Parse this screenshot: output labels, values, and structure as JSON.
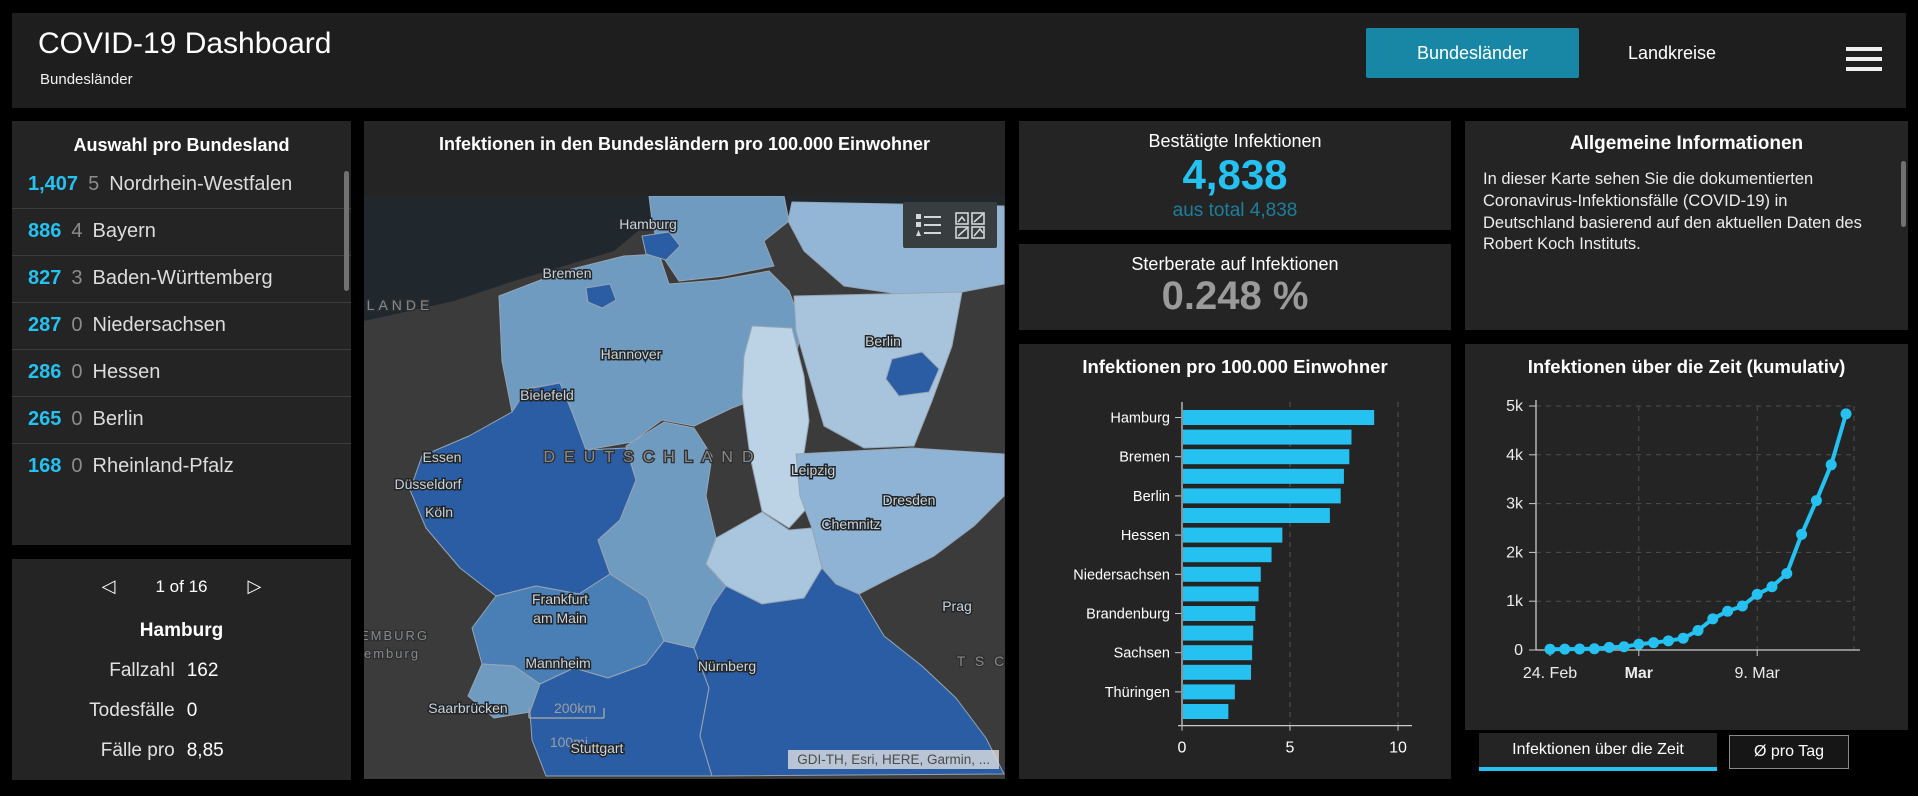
{
  "header": {
    "title": "COVID-19 Dashboard",
    "subtitle": "Bundesländer",
    "tabs": [
      {
        "label": "Bundesländer",
        "active": true
      },
      {
        "label": "Landkreise",
        "active": false
      }
    ]
  },
  "colors": {
    "accent": "#25c1f1",
    "accent_dim": "#1d7f9c",
    "active_tab_bg": "#1887a5",
    "muted": "#9a9a9a"
  },
  "state_list": {
    "title": "Auswahl pro Bundesland",
    "items": [
      {
        "cases": "1,407",
        "deaths": "5",
        "name": "Nordrhein-Westfalen"
      },
      {
        "cases": "886",
        "deaths": "4",
        "name": "Bayern"
      },
      {
        "cases": "827",
        "deaths": "3",
        "name": "Baden-Württemberg"
      },
      {
        "cases": "287",
        "deaths": "0",
        "name": "Niedersachsen"
      },
      {
        "cases": "286",
        "deaths": "0",
        "name": "Hessen"
      },
      {
        "cases": "265",
        "deaths": "0",
        "name": "Berlin"
      },
      {
        "cases": "168",
        "deaths": "0",
        "name": "Rheinland-Pfalz"
      }
    ]
  },
  "detail": {
    "pagination": "1 of 16",
    "region": "Hamburg",
    "rows": [
      {
        "label": "Fallzahl",
        "value": "162"
      },
      {
        "label": "Todesfälle",
        "value": "0"
      },
      {
        "label": "Fälle pro",
        "value": "8,85"
      }
    ]
  },
  "map": {
    "title": "Infektionen in den Bundesländern pro 100.000 Einwohner",
    "attribution": "GDI-TH, Esri, HERE, Garmin, ...",
    "scale_km": "200km",
    "scale_mi": "100mi",
    "cities": [
      "Hamburg",
      "Bremen",
      "Hannover",
      "Bielefeld",
      "Berlin",
      "Essen",
      "Düsseldorf",
      "Köln",
      "Leipzig",
      "Dresden",
      "Chemnitz",
      "Frankfurt am Main",
      "Mannheim",
      "Nürnberg",
      "Saarbrücken",
      "Stuttgart",
      "Prag"
    ],
    "region_labels": [
      "DEUTSCHLAND",
      "LANDE",
      "EMBURG",
      "emburg",
      "T S C"
    ]
  },
  "stats": {
    "confirmed_title": "Bestätigte Infektionen",
    "confirmed_value": "4,838",
    "confirmed_sub": "aus total 4,838",
    "rate_title": "Sterberate auf Infektionen",
    "rate_value": "0.248 %"
  },
  "info": {
    "title": "Allgemeine Informationen",
    "body": "In dieser Karte sehen Sie die dokumentierten Coronavirus-Infektionsfälle (COVID-19) in Deutschland basierend auf den aktuellen Daten des Robert Koch Instituts."
  },
  "chart_data": [
    {
      "type": "bar",
      "orientation": "horizontal",
      "title": "Infektionen pro 100.000 Einwohner",
      "categories": [
        "Hamburg",
        "",
        "Bremen",
        "",
        "Berlin",
        "",
        "Hessen",
        "",
        "Niedersachsen",
        "",
        "Brandenburg",
        "",
        "Sachsen",
        "",
        "Thüringen",
        ""
      ],
      "values": [
        8.85,
        7.8,
        7.7,
        7.45,
        7.3,
        6.8,
        4.6,
        4.1,
        3.6,
        3.5,
        3.35,
        3.25,
        3.2,
        3.15,
        2.4,
        2.1
      ],
      "xlabel": "",
      "ylabel": "",
      "xlim": [
        0,
        10
      ],
      "xticks": [
        0,
        5,
        10
      ],
      "bar_color": "#25c1f1",
      "grid": "dashed-vertical"
    },
    {
      "type": "line",
      "title": "Infektionen über die Zeit (kumulativ)",
      "x_tick_labels": [
        {
          "index": 0,
          "label": "24. Feb",
          "bold": false
        },
        {
          "index": 6,
          "label": "Mar",
          "bold": true
        },
        {
          "index": 14,
          "label": "9. Mar",
          "bold": false
        }
      ],
      "values": [
        16,
        18,
        21,
        26,
        53,
        66,
        117,
        150,
        188,
        240,
        400,
        639,
        795,
        902,
        1139,
        1296,
        1567,
        2369,
        3062,
        3795,
        4838
      ],
      "ylim": [
        0,
        5000
      ],
      "yticks": [
        "0",
        "1k",
        "2k",
        "3k",
        "4k",
        "5k"
      ],
      "line_color": "#25c1f1",
      "markers": true,
      "grid": "dashed",
      "legend": "none"
    }
  ],
  "time_tabs": [
    {
      "label": "Infektionen über die Zeit",
      "active": true
    },
    {
      "label": "Ø pro Tag",
      "active": false
    }
  ]
}
